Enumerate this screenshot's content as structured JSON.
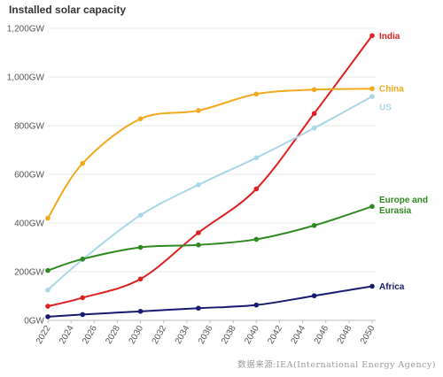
{
  "chart_data": {
    "type": "line",
    "title": "Installed solar capacity",
    "xlabel": "",
    "ylabel": "",
    "ylim": [
      0,
      1200
    ],
    "y_ticks": [
      0,
      200,
      400,
      600,
      800,
      1000,
      1200
    ],
    "y_tick_labels": [
      "0GW",
      "200GW",
      "400GW",
      "600GW",
      "800GW",
      "1,000GW",
      "1,200GW"
    ],
    "x_ticks": [
      2022,
      2024,
      2026,
      2028,
      2030,
      2032,
      2034,
      2036,
      2038,
      2040,
      2042,
      2044,
      2046,
      2048,
      2050
    ],
    "xlim": [
      2022,
      2050
    ],
    "grid": "horizontal",
    "legend": "end-of-line labels",
    "series": [
      {
        "name": "India",
        "color": "#e02020",
        "x": [
          2022,
          2025,
          2030,
          2035,
          2040,
          2045,
          2050
        ],
        "y": [
          58,
          93,
          170,
          360,
          540,
          850,
          1170
        ]
      },
      {
        "name": "China",
        "color": "#f2a91c",
        "x": [
          2022,
          2025,
          2030,
          2035,
          2040,
          2045,
          2050
        ],
        "y": [
          420,
          645,
          828,
          862,
          930,
          948,
          952
        ]
      },
      {
        "name": "US",
        "color": "#a9d7e8",
        "x": [
          2022,
          2025,
          2030,
          2035,
          2040,
          2045,
          2050
        ],
        "y": [
          125,
          250,
          432,
          557,
          668,
          790,
          920
        ]
      },
      {
        "name": "Europe and Eurasia",
        "color": "#2e8a1f",
        "x": [
          2022,
          2025,
          2030,
          2035,
          2040,
          2045,
          2050
        ],
        "y": [
          205,
          252,
          300,
          310,
          333,
          390,
          468
        ]
      },
      {
        "name": "Africa",
        "color": "#161a70",
        "x": [
          2022,
          2025,
          2030,
          2035,
          2040,
          2045,
          2050
        ],
        "y": [
          15,
          24,
          37,
          50,
          63,
          101,
          140
        ]
      }
    ]
  },
  "source": "数据来源:IEA(International Energy Agency)"
}
